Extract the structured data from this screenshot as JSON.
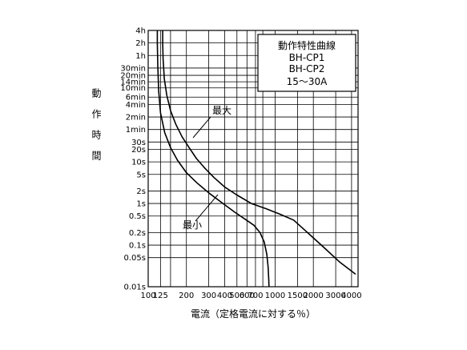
{
  "chart_data": {
    "type": "line",
    "title_lines": [
      "動作特性曲線",
      "BH-CP1",
      "BH-CP2",
      "15〜30A"
    ],
    "xlabel": "電流（定格電流に対する％）",
    "ylabel": "動作時間",
    "x_scale": "log",
    "y_scale": "log",
    "grid": true,
    "xlim": [
      100,
      4500
    ],
    "ylim": [
      0.01,
      14400
    ],
    "x_ticks": [
      {
        "v": 100,
        "label": "100"
      },
      {
        "v": 125,
        "label": "125"
      },
      {
        "v": 200,
        "label": "200"
      },
      {
        "v": 300,
        "label": "300"
      },
      {
        "v": 400,
        "label": "400"
      },
      {
        "v": 500,
        "label": "500"
      },
      {
        "v": 600,
        "label": "600"
      },
      {
        "v": 700,
        "label": "700"
      },
      {
        "v": 1000,
        "label": "1000"
      },
      {
        "v": 1500,
        "label": "1500"
      },
      {
        "v": 2000,
        "label": "2000"
      },
      {
        "v": 3000,
        "label": "3000"
      },
      {
        "v": 4000,
        "label": "4000"
      }
    ],
    "y_ticks": [
      {
        "v": 0.01,
        "label": "0.01s"
      },
      {
        "v": 0.05,
        "label": "0.05s"
      },
      {
        "v": 0.1,
        "label": "0.1s"
      },
      {
        "v": 0.2,
        "label": "0.2s"
      },
      {
        "v": 0.5,
        "label": "0.5s"
      },
      {
        "v": 1,
        "label": "1s"
      },
      {
        "v": 2,
        "label": "2s"
      },
      {
        "v": 5,
        "label": "5s"
      },
      {
        "v": 10,
        "label": "10s"
      },
      {
        "v": 20,
        "label": "20s"
      },
      {
        "v": 30,
        "label": "30s"
      },
      {
        "v": 60,
        "label": "1min"
      },
      {
        "v": 120,
        "label": "2min"
      },
      {
        "v": 240,
        "label": "4min"
      },
      {
        "v": 360,
        "label": "6min"
      },
      {
        "v": 600,
        "label": "10min"
      },
      {
        "v": 840,
        "label": "14min"
      },
      {
        "v": 1200,
        "label": "20min"
      },
      {
        "v": 1800,
        "label": "30min"
      },
      {
        "v": 3600,
        "label": "1h"
      },
      {
        "v": 7200,
        "label": "2h"
      },
      {
        "v": 14400,
        "label": "4h"
      }
    ],
    "x_grid": [
      100,
      125,
      150,
      200,
      300,
      400,
      500,
      600,
      700,
      800,
      1000,
      1500,
      2000,
      3000,
      4000,
      4500
    ],
    "series": [
      {
        "name": "最大",
        "color": "#000000",
        "x": [
          130,
          130,
          131,
          134,
          140,
          150,
          165,
          185,
          210,
          240,
          280,
          330,
          400,
          500,
          650,
          850,
          1100,
          1400,
          1800,
          2400,
          3200,
          4300
        ],
        "y": [
          14400,
          7200,
          3000,
          1000,
          400,
          170,
          80,
          40,
          22,
          12,
          7,
          4.2,
          2.5,
          1.6,
          1.0,
          0.75,
          0.55,
          0.4,
          0.2,
          0.09,
          0.04,
          0.02
        ]
      },
      {
        "name": "最小",
        "color": "#000000",
        "x": [
          118,
          118,
          119,
          121,
          125,
          135,
          150,
          170,
          200,
          240,
          300,
          380,
          480,
          580,
          680,
          760,
          820,
          860,
          880,
          890,
          895
        ],
        "y": [
          14400,
          7200,
          2000,
          500,
          150,
          50,
          22,
          11,
          5.5,
          3.2,
          1.8,
          1.05,
          0.62,
          0.42,
          0.3,
          0.2,
          0.12,
          0.06,
          0.03,
          0.015,
          0.01
        ]
      }
    ],
    "annotations": [
      {
        "text": "最大",
        "series": 0
      },
      {
        "text": "最小",
        "series": 1
      }
    ]
  }
}
